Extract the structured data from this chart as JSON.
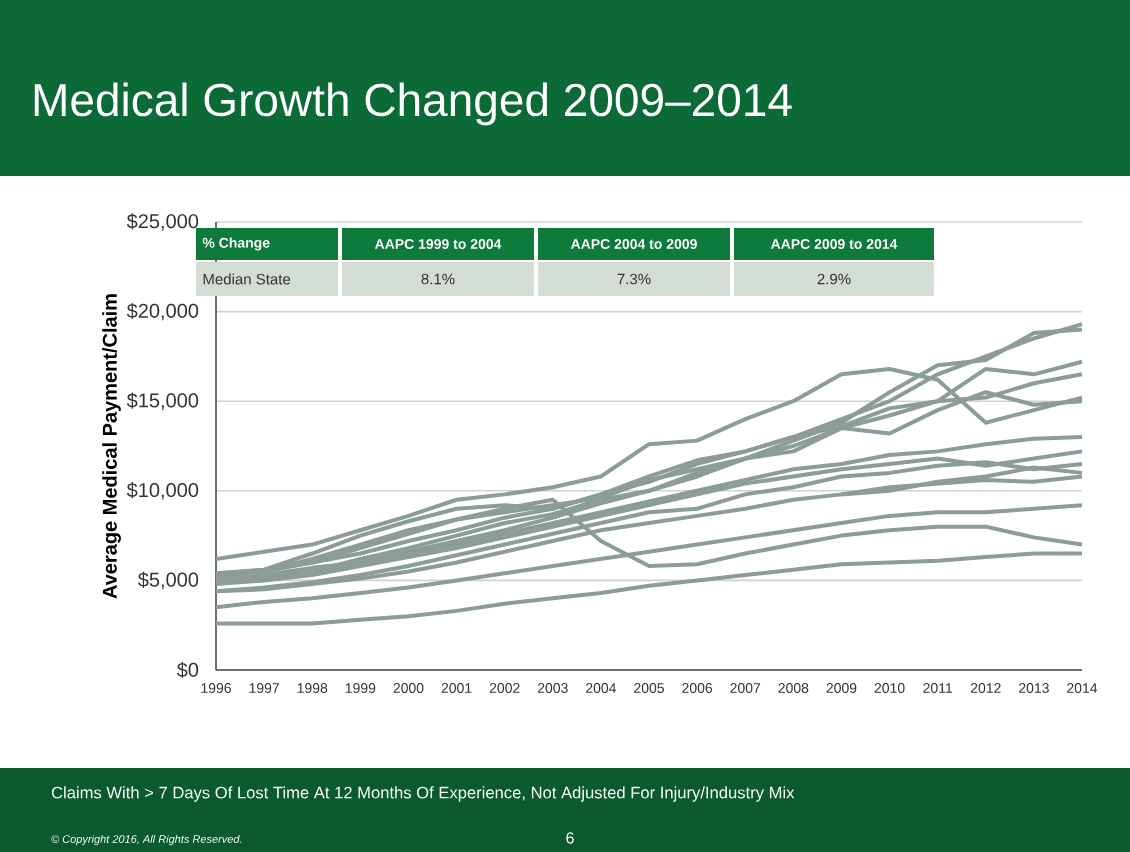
{
  "chart_data": {
    "type": "line",
    "title": "Medical Growth Changed 2009–2014",
    "ylabel": "Average Medical Payment/Claim",
    "x": [
      1996,
      1997,
      1998,
      1999,
      2000,
      2001,
      2002,
      2003,
      2004,
      2005,
      2006,
      2007,
      2008,
      2009,
      2010,
      2011,
      2012,
      2013,
      2014
    ],
    "xlim": [
      1996,
      2014
    ],
    "xticks": [
      1996,
      1997,
      1998,
      1999,
      2000,
      2001,
      2002,
      2003,
      2004,
      2005,
      2006,
      2007,
      2008,
      2009,
      2010,
      2011,
      2012,
      2013,
      2014
    ],
    "ylim": [
      0,
      25000
    ],
    "yticks": [
      {
        "value": 0,
        "label": "$0"
      },
      {
        "value": 5000,
        "label": "$5,000"
      },
      {
        "value": 10000,
        "label": "$10,000"
      },
      {
        "value": 15000,
        "label": "$15,000"
      },
      {
        "value": 20000,
        "label": "$20,000"
      },
      {
        "value": 25000,
        "label": "$25,000"
      }
    ],
    "grid": "y",
    "series": [
      {
        "color": "#8c9c98",
        "values": [
          6200,
          6600,
          7000,
          7800,
          8600,
          9500,
          9800,
          10200,
          10800,
          12600,
          12800,
          14000,
          15000,
          16500,
          16800,
          16200,
          13800,
          14500,
          15200
        ]
      },
      {
        "color": "#8c9c98",
        "values": [
          5300,
          5500,
          6000,
          6500,
          7200,
          7800,
          8500,
          9000,
          9800,
          10500,
          11500,
          12200,
          13000,
          14000,
          15000,
          16500,
          17500,
          18500,
          19300
        ]
      },
      {
        "color": "#8c9c98",
        "values": [
          5000,
          5300,
          5700,
          6000,
          6600,
          7200,
          7800,
          8500,
          9300,
          10000,
          10800,
          11800,
          12800,
          13800,
          15500,
          17000,
          17300,
          18800,
          19000
        ]
      },
      {
        "color": "#8c9c98",
        "values": [
          5200,
          5500,
          6200,
          7000,
          7800,
          8400,
          8800,
          9200,
          9600,
          10600,
          11200,
          11800,
          12500,
          13500,
          14200,
          15000,
          16800,
          16500,
          17200
        ]
      },
      {
        "color": "#8c9c98",
        "values": [
          5300,
          5600,
          6500,
          7500,
          8300,
          9000,
          9200,
          9000,
          9800,
          10800,
          11700,
          12200,
          13000,
          13600,
          14600,
          15000,
          15200,
          16000,
          16500
        ]
      },
      {
        "color": "#8c9c98",
        "values": [
          5000,
          5200,
          5500,
          6200,
          6800,
          7500,
          8200,
          8700,
          9500,
          10000,
          11000,
          11800,
          12200,
          13500,
          13200,
          14500,
          15500,
          14800,
          15000
        ]
      },
      {
        "color": "#8c9c98",
        "values": [
          5400,
          5600,
          6000,
          6800,
          7600,
          8400,
          9000,
          9500,
          7200,
          5800,
          5900,
          6500,
          7000,
          7500,
          7800,
          8000,
          8000,
          7400,
          7000
        ]
      },
      {
        "color": "#8c9c98",
        "values": [
          5000,
          5100,
          5400,
          5900,
          6500,
          7000,
          7600,
          8200,
          8800,
          9400,
          10000,
          10600,
          11200,
          11500,
          12000,
          12200,
          12600,
          12900,
          13000
        ]
      },
      {
        "color": "#8c9c98",
        "values": [
          4800,
          5000,
          5300,
          5800,
          6300,
          6800,
          7400,
          8000,
          8600,
          9200,
          9800,
          10400,
          10800,
          11200,
          11500,
          11800,
          11400,
          11800,
          12200
        ]
      },
      {
        "color": "#8c9c98",
        "values": [
          4400,
          4600,
          4900,
          5300,
          5800,
          6400,
          7000,
          7600,
          8200,
          8800,
          9000,
          9800,
          10200,
          10800,
          11000,
          11400,
          11600,
          11200,
          11500
        ]
      },
      {
        "color": "#8c9c98",
        "values": [
          4400,
          4500,
          4800,
          5100,
          5500,
          6000,
          6600,
          7200,
          7800,
          8200,
          8600,
          9000,
          9500,
          9800,
          10200,
          10400,
          10600,
          10500,
          10800
        ]
      },
      {
        "color": "#8c9c98",
        "values": [
          3500,
          3800,
          4000,
          4300,
          4600,
          5000,
          5400,
          5800,
          6200,
          6600,
          7000,
          7400,
          7800,
          8200,
          8600,
          8800,
          8800,
          9000,
          9200
        ]
      },
      {
        "color": "#8c9c98",
        "values": [
          2600,
          2600,
          2600,
          2800,
          3000,
          3300,
          3700,
          4000,
          4300,
          4700,
          5000,
          5300,
          5600,
          5900,
          6000,
          6100,
          6300,
          6500,
          6500
        ]
      },
      {
        "color": "#8c9c98",
        "values": [
          null,
          null,
          null,
          null,
          null,
          null,
          null,
          null,
          null,
          null,
          null,
          null,
          null,
          9800,
          10000,
          10500,
          10800,
          11300,
          11000
        ]
      }
    ],
    "annotations": [
      "% Change",
      "AAPC  1999 to 2004",
      "AAPC 2004 to 2009",
      "AAPC 2009 to 2014",
      "Median State",
      "8.1%",
      "7.3%",
      "2.9%",
      "Claims With > 7 Days Of Lost Time At 12 Months Of Experience, Not Adjusted For Injury/Industry Mix",
      "© Copyright 2016, All Rights Reserved.",
      "6"
    ]
  }
}
